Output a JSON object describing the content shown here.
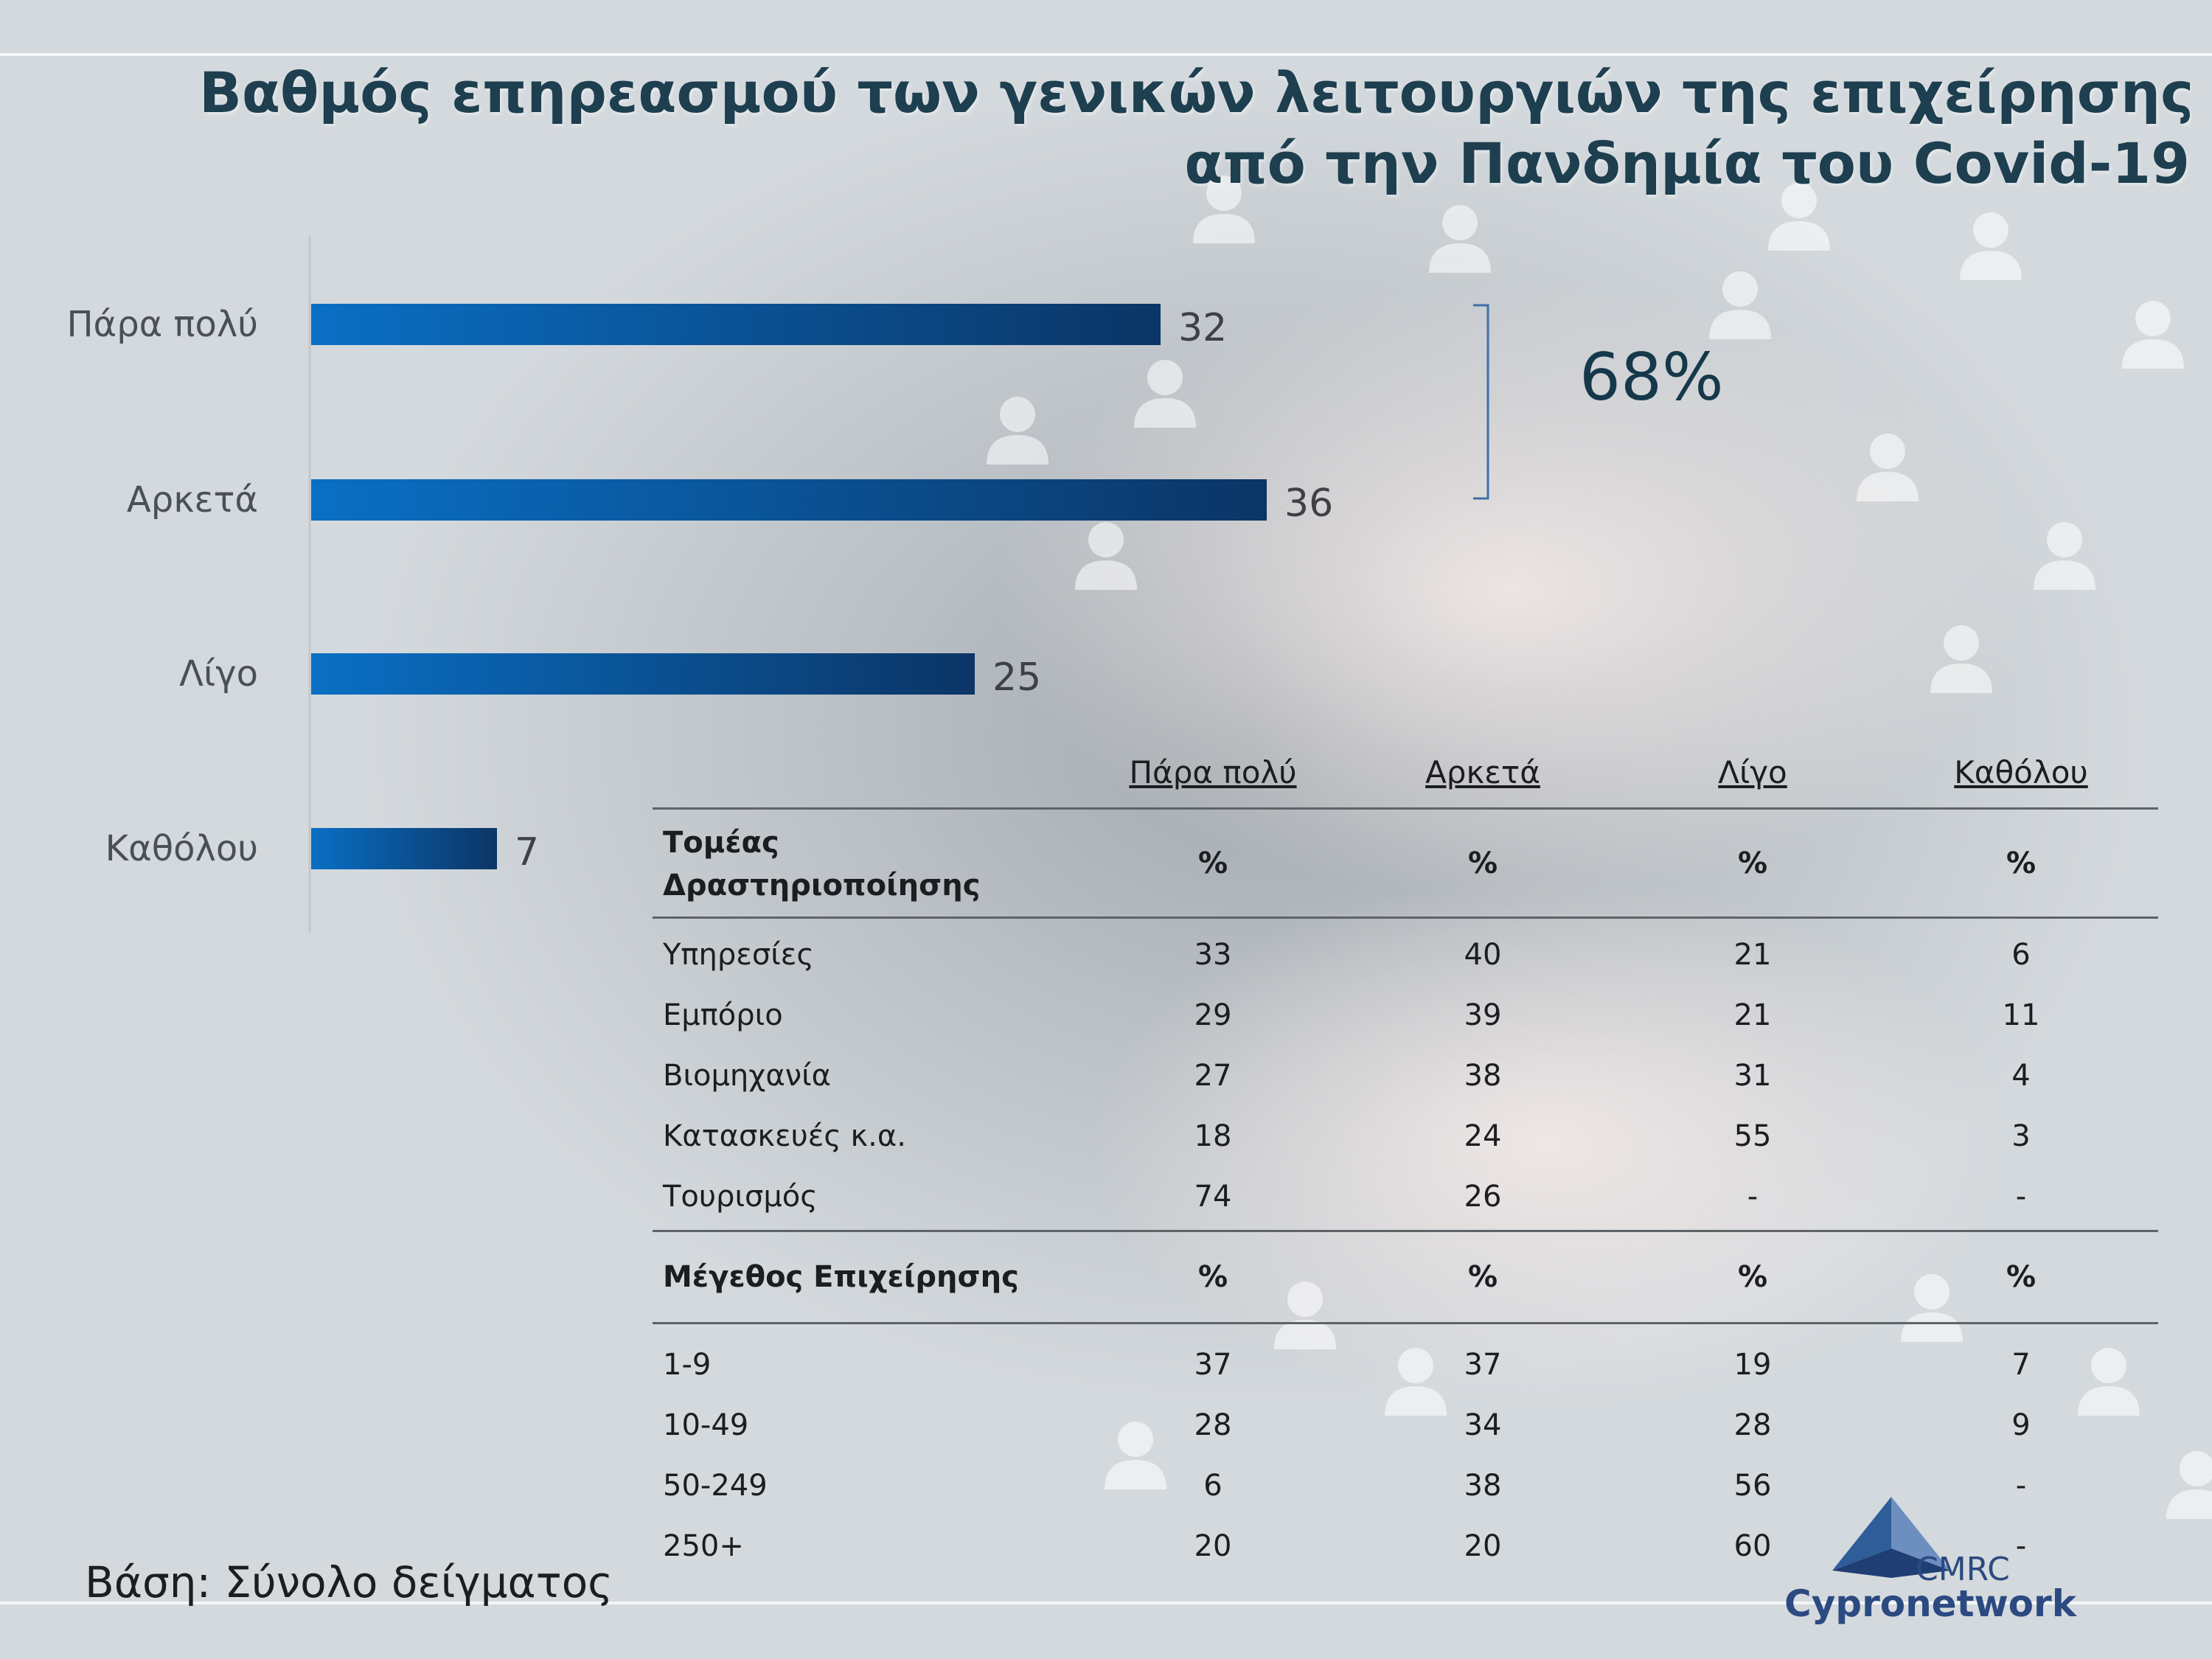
{
  "title": {
    "line1": "Βαθμός επηρεασμού των γενικών λειτουργιών της επιχείρησης",
    "line2": "από την Πανδημία του Covid-19"
  },
  "chart_data": {
    "type": "bar",
    "orientation": "horizontal",
    "categories": [
      "Πάρα πολύ",
      "Αρκετά",
      "Λίγο",
      "Καθόλου"
    ],
    "values": [
      32,
      36,
      25,
      7
    ],
    "unit": "%",
    "xlim": [
      0,
      40
    ],
    "bar_colors": [
      "#0a6fc4",
      "#0b3566"
    ],
    "annotation": {
      "text": "68%",
      "covers": [
        "Πάρα πολύ",
        "Αρκετά"
      ]
    }
  },
  "table": {
    "columns": [
      "Πάρα πολύ",
      "Αρκετά",
      "Λίγο",
      "Καθόλου"
    ],
    "groups": [
      {
        "label_line1": "Τομέας",
        "label_line2": "Δραστηριοποίησης",
        "unit_labels": [
          "%",
          "%",
          "%",
          "%"
        ],
        "rows": [
          {
            "label": "Υπηρεσίες",
            "values": [
              "33",
              "40",
              "21",
              "6"
            ]
          },
          {
            "label": "Εμπόριο",
            "values": [
              "29",
              "39",
              "21",
              "11"
            ]
          },
          {
            "label": "Βιομηχανία",
            "values": [
              "27",
              "38",
              "31",
              "4"
            ]
          },
          {
            "label": "Κατασκευές κ.α.",
            "values": [
              "18",
              "24",
              "55",
              "3"
            ]
          },
          {
            "label": "Τουρισμός",
            "values": [
              "74",
              "26",
              "-",
              "-"
            ]
          }
        ]
      },
      {
        "label_line1": "Μέγεθος Επιχείρησης",
        "label_line2": "",
        "unit_labels": [
          "%",
          "%",
          "%",
          "%"
        ],
        "rows": [
          {
            "label": "1-9",
            "values": [
              "37",
              "37",
              "19",
              "7"
            ]
          },
          {
            "label": "10-49",
            "values": [
              "28",
              "34",
              "28",
              "9"
            ]
          },
          {
            "label": "50-249",
            "values": [
              "6",
              "38",
              "56",
              "-"
            ]
          },
          {
            "label": "250+",
            "values": [
              "20",
              "20",
              "60",
              "-"
            ]
          }
        ]
      }
    ]
  },
  "footnote": "Βάση: Σύνολο δείγματος",
  "logo": {
    "line1": "CMRC",
    "line2": "Cypronetwork",
    "icon": "pyramid-logo-icon"
  },
  "colors": {
    "title": "#1d3f4f",
    "accent": "#0b3566",
    "logo": "#2b4a82"
  }
}
